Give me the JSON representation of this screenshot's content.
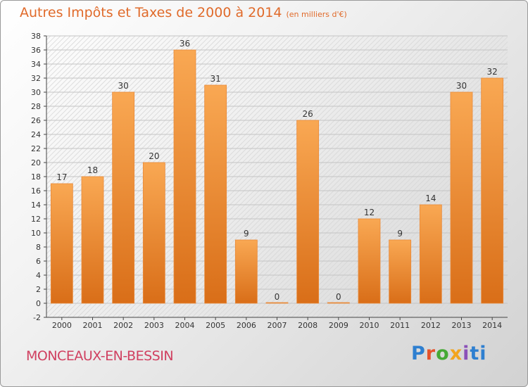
{
  "title": "Autres Impôts et Taxes de 2000 à 2014",
  "unit": "(en milliers d'€)",
  "city": "MONCEAUX-EN-BESSIN",
  "logo": [
    "P",
    "r",
    "o",
    "x",
    "i",
    "ti"
  ],
  "colors": {
    "bar_light": "#f9a853",
    "bar_dark": "#d96e18",
    "title": "#e06a2a",
    "city": "#d04060"
  },
  "chart_data": {
    "type": "bar",
    "title": "Autres Impôts et Taxes de 2000 à 2014",
    "categories": [
      "2000",
      "2001",
      "2002",
      "2003",
      "2004",
      "2005",
      "2006",
      "2007",
      "2008",
      "2009",
      "2010",
      "2011",
      "2012",
      "2013",
      "2014"
    ],
    "values": [
      17,
      18,
      30,
      20,
      36,
      31,
      9,
      0,
      26,
      0,
      12,
      9,
      14,
      30,
      32
    ],
    "ylim": [
      -2,
      38
    ],
    "yticks": [
      -2,
      0,
      2,
      4,
      6,
      8,
      10,
      12,
      14,
      16,
      18,
      20,
      22,
      24,
      26,
      28,
      30,
      32,
      34,
      36,
      38
    ],
    "grid": true,
    "xlabel": "",
    "ylabel": ""
  }
}
